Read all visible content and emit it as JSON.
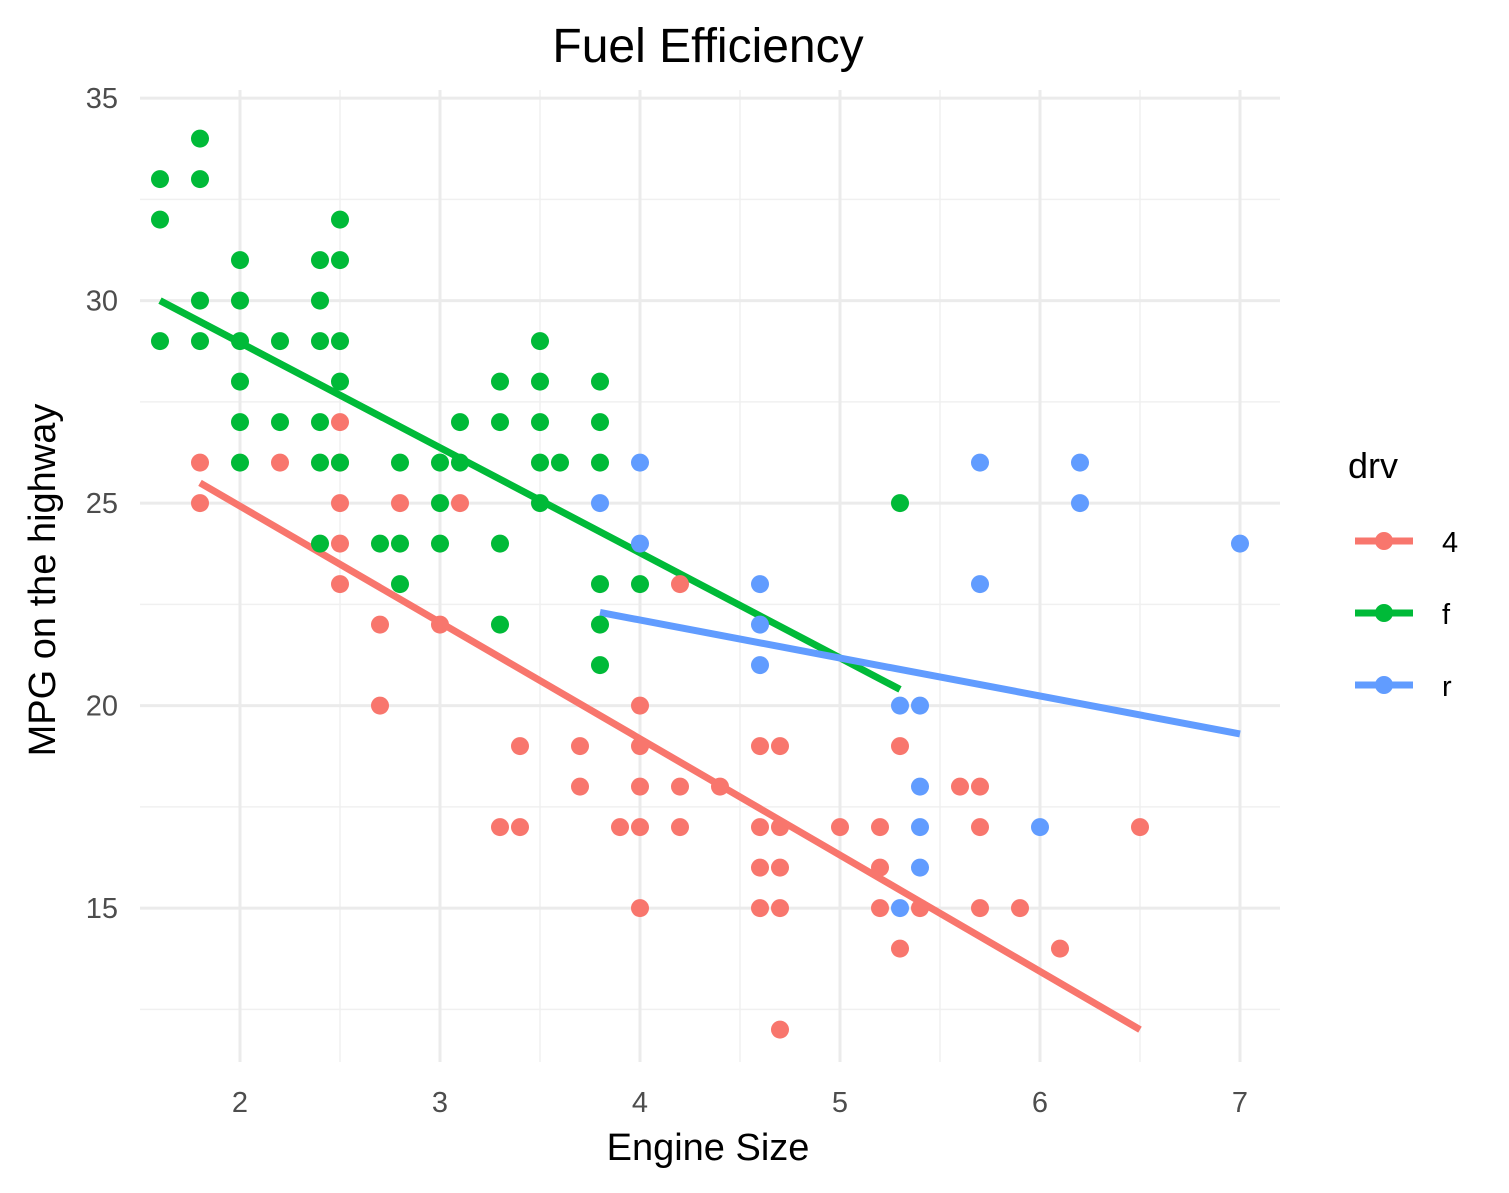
{
  "chart_data": {
    "type": "scatter",
    "title": "Fuel Efficiency",
    "xlabel": "Engine Size",
    "ylabel": "MPG on the highway",
    "xlim": [
      1.5,
      7.2
    ],
    "ylim": [
      11.2,
      35.2
    ],
    "x_ticks": [
      "2",
      "3",
      "4",
      "5",
      "6",
      "7"
    ],
    "y_ticks": [
      "15",
      "20",
      "25",
      "30",
      "35"
    ],
    "grid": true,
    "legend_title": "drv",
    "legend_position": "right",
    "series": [
      {
        "name": "4",
        "color": "#F8766D",
        "points": [
          [
            1.8,
            26
          ],
          [
            1.8,
            25
          ],
          [
            2.2,
            26
          ],
          [
            2.5,
            27
          ],
          [
            2.5,
            26
          ],
          [
            2.5,
            25
          ],
          [
            2.5,
            24
          ],
          [
            2.5,
            23
          ],
          [
            2.7,
            22
          ],
          [
            2.7,
            20
          ],
          [
            2.8,
            25
          ],
          [
            3.0,
            22
          ],
          [
            3.1,
            25
          ],
          [
            3.3,
            17
          ],
          [
            3.4,
            19
          ],
          [
            3.4,
            17
          ],
          [
            3.7,
            19
          ],
          [
            3.7,
            18
          ],
          [
            3.9,
            17
          ],
          [
            4.0,
            20
          ],
          [
            4.0,
            19
          ],
          [
            4.0,
            18
          ],
          [
            4.0,
            17
          ],
          [
            4.0,
            15
          ],
          [
            4.2,
            23
          ],
          [
            4.2,
            18
          ],
          [
            4.2,
            17
          ],
          [
            4.4,
            18
          ],
          [
            4.6,
            19
          ],
          [
            4.6,
            17
          ],
          [
            4.6,
            16
          ],
          [
            4.6,
            15
          ],
          [
            4.7,
            19
          ],
          [
            4.7,
            17
          ],
          [
            4.7,
            16
          ],
          [
            4.7,
            15
          ],
          [
            4.7,
            12
          ],
          [
            5.0,
            17
          ],
          [
            5.2,
            17
          ],
          [
            5.2,
            16
          ],
          [
            5.2,
            15
          ],
          [
            5.3,
            19
          ],
          [
            5.3,
            14
          ],
          [
            5.4,
            15
          ],
          [
            5.6,
            18
          ],
          [
            5.7,
            18
          ],
          [
            5.7,
            17
          ],
          [
            5.7,
            15
          ],
          [
            5.9,
            15
          ],
          [
            6.1,
            14
          ],
          [
            6.5,
            17
          ]
        ],
        "fit": [
          [
            1.8,
            25.5
          ],
          [
            6.5,
            12.0
          ]
        ]
      },
      {
        "name": "f",
        "color": "#00BA38",
        "points": [
          [
            1.6,
            33
          ],
          [
            1.6,
            32
          ],
          [
            1.6,
            29
          ],
          [
            1.8,
            34
          ],
          [
            1.8,
            33
          ],
          [
            1.8,
            30
          ],
          [
            1.8,
            29
          ],
          [
            2.0,
            31
          ],
          [
            2.0,
            30
          ],
          [
            2.0,
            29
          ],
          [
            2.0,
            28
          ],
          [
            2.0,
            27
          ],
          [
            2.0,
            26
          ],
          [
            2.2,
            29
          ],
          [
            2.2,
            27
          ],
          [
            2.4,
            31
          ],
          [
            2.4,
            30
          ],
          [
            2.4,
            29
          ],
          [
            2.4,
            27
          ],
          [
            2.4,
            26
          ],
          [
            2.4,
            24
          ],
          [
            2.5,
            32
          ],
          [
            2.5,
            31
          ],
          [
            2.5,
            29
          ],
          [
            2.5,
            28
          ],
          [
            2.5,
            26
          ],
          [
            2.7,
            24
          ],
          [
            2.8,
            26
          ],
          [
            2.8,
            24
          ],
          [
            2.8,
            23
          ],
          [
            3.0,
            26
          ],
          [
            3.0,
            25
          ],
          [
            3.0,
            24
          ],
          [
            3.1,
            27
          ],
          [
            3.1,
            26
          ],
          [
            3.3,
            28
          ],
          [
            3.3,
            27
          ],
          [
            3.3,
            24
          ],
          [
            3.3,
            22
          ],
          [
            3.5,
            29
          ],
          [
            3.5,
            28
          ],
          [
            3.5,
            27
          ],
          [
            3.5,
            26
          ],
          [
            3.5,
            25
          ],
          [
            3.6,
            26
          ],
          [
            3.8,
            28
          ],
          [
            3.8,
            27
          ],
          [
            3.8,
            26
          ],
          [
            3.8,
            23
          ],
          [
            3.8,
            22
          ],
          [
            3.8,
            21
          ],
          [
            4.0,
            23
          ],
          [
            5.3,
            25
          ]
        ],
        "fit": [
          [
            1.6,
            30.0
          ],
          [
            5.3,
            20.4
          ]
        ]
      },
      {
        "name": "r",
        "color": "#619CFF",
        "points": [
          [
            3.8,
            25
          ],
          [
            4.0,
            26
          ],
          [
            4.0,
            24
          ],
          [
            4.6,
            23
          ],
          [
            4.6,
            22
          ],
          [
            4.6,
            21
          ],
          [
            5.3,
            20
          ],
          [
            5.3,
            15
          ],
          [
            5.4,
            20
          ],
          [
            5.4,
            18
          ],
          [
            5.4,
            17
          ],
          [
            5.4,
            16
          ],
          [
            5.7,
            26
          ],
          [
            5.7,
            23
          ],
          [
            6.0,
            17
          ],
          [
            6.2,
            26
          ],
          [
            6.2,
            25
          ],
          [
            7.0,
            24
          ]
        ],
        "fit": [
          [
            3.8,
            22.3
          ],
          [
            7.0,
            19.3
          ]
        ]
      }
    ]
  }
}
